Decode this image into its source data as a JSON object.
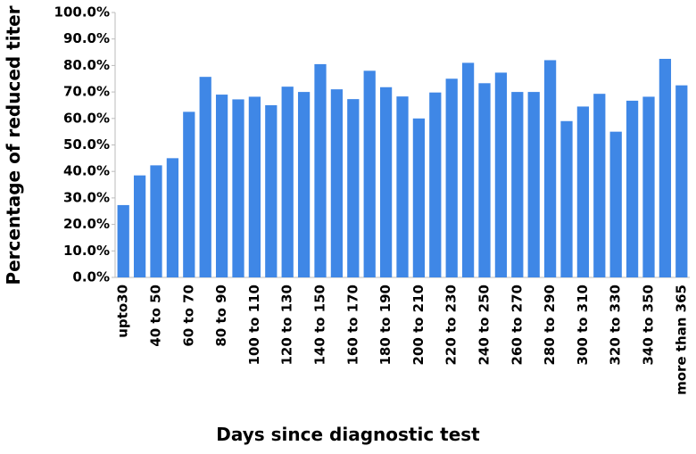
{
  "chart_data": {
    "type": "bar",
    "x_label": "Days since diagnostic test",
    "y_label": "Percentage of reduced titer",
    "categories": [
      "upto30",
      null,
      "40 to 50",
      null,
      "60 to 70",
      null,
      "80 to 90",
      null,
      "100 to 110",
      null,
      "120 to 130",
      null,
      "140 to 150",
      null,
      "160 to 170",
      null,
      "180 to 190",
      null,
      "200 to 210",
      null,
      "220 to 230",
      null,
      "240 to 250",
      null,
      "260 to 270",
      null,
      "280 to 290",
      null,
      "300 to 310",
      null,
      "320 to 330",
      null,
      "340 to 350",
      null,
      "more than 365"
    ],
    "values": [
      27.3,
      38.5,
      42.3,
      45,
      62.5,
      75.7,
      69,
      67.2,
      68.2,
      65,
      72,
      70,
      80.5,
      71,
      67.3,
      78,
      71.8,
      68.3,
      60,
      69.8,
      75,
      81,
      73.3,
      77.3,
      70,
      70,
      82,
      59,
      64.5,
      69.3,
      55,
      66.7,
      68.2,
      82.5,
      72.5
    ],
    "color": "#3f87e6",
    "ylim": [
      0,
      100
    ],
    "yticks": [
      {
        "value": 0,
        "label": "0.0%"
      },
      {
        "value": 10,
        "label": "10.0%"
      },
      {
        "value": 20,
        "label": "20.0%"
      },
      {
        "value": 30,
        "label": "30.0%"
      },
      {
        "value": 40,
        "label": "40.0%"
      },
      {
        "value": 50,
        "label": "50.0%"
      },
      {
        "value": 60,
        "label": "60.0%"
      },
      {
        "value": 70,
        "label": "70.0%"
      },
      {
        "value": 80,
        "label": "80.0%"
      },
      {
        "value": 90,
        "label": "90.0%"
      },
      {
        "value": 100,
        "label": "100.0%"
      }
    ],
    "grid": false
  }
}
